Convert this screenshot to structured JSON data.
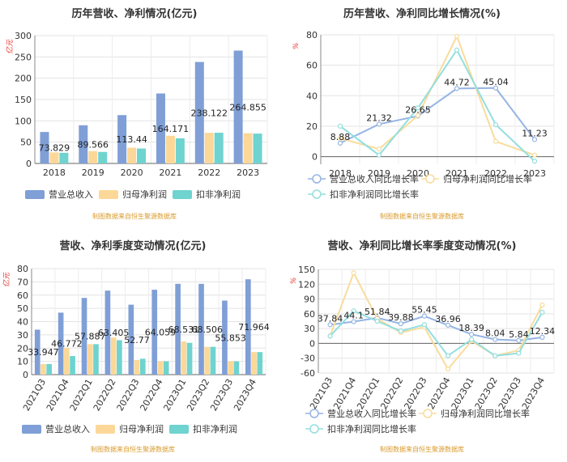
{
  "colors": {
    "revenue": "#7f9fd6",
    "netprofit": "#fcd898",
    "deducted": "#6fd3cf",
    "revenue_line": "#95b4e3",
    "netprofit_line": "#f8dc9c",
    "deducted_line": "#93dede",
    "axis_red": "#e8322c",
    "source": "#d99a2b"
  },
  "source_note": "制图数据来自恒生聚源数据库",
  "chart_data": [
    {
      "id": "annual_bar",
      "type": "bar",
      "title": "历年营收、净利情况(亿元)",
      "ylabel": "亿元",
      "ylim": [
        0,
        300
      ],
      "yticks": [
        0,
        50,
        100,
        150,
        200,
        250,
        300
      ],
      "categories": [
        "2018",
        "2019",
        "2020",
        "2021",
        "2022",
        "2023"
      ],
      "series": [
        {
          "name": "营业总收入",
          "values": [
            73.829,
            89.566,
            113.44,
            164.171,
            238.122,
            264.855
          ]
        },
        {
          "name": "归母净利润",
          "values": [
            26,
            29,
            37,
            65,
            72,
            71
          ]
        },
        {
          "name": "扣非净利润",
          "values": [
            25,
            27,
            35,
            59,
            72,
            70
          ]
        }
      ],
      "labels": [
        "73.829",
        "89.566",
        "113.44",
        "164.171",
        "238.122",
        "264.855"
      ]
    },
    {
      "id": "annual_line",
      "type": "line",
      "title": "历年营收、净利同比增长情况(%)",
      "ylabel": "%",
      "ylim": [
        -5,
        80
      ],
      "yticks": [
        0,
        20,
        40,
        60,
        80
      ],
      "categories": [
        "2018",
        "2019",
        "2020",
        "2021",
        "2022",
        "2023"
      ],
      "series": [
        {
          "name": "营业总收入同比增长率",
          "values": [
            8.88,
            21.32,
            26.65,
            44.72,
            45.04,
            11.23
          ]
        },
        {
          "name": "归母净利润同比增长率",
          "values": [
            12,
            5,
            27,
            79,
            10,
            1
          ]
        },
        {
          "name": "扣非净利润同比增长率",
          "values": [
            20,
            1,
            32,
            70,
            21,
            -3
          ]
        }
      ],
      "labels": [
        "8.88",
        "21.32",
        "26.65",
        "44.72",
        "45.04",
        "11.23"
      ]
    },
    {
      "id": "quarter_bar",
      "type": "bar",
      "title": "营收、净利季度变动情况(亿元)",
      "ylabel": "亿元",
      "ylim": [
        0,
        80
      ],
      "yticks": [
        0,
        10,
        20,
        30,
        40,
        50,
        60,
        70,
        80
      ],
      "categories": [
        "2021Q3",
        "2021Q4",
        "2022Q1",
        "2022Q2",
        "2022Q3",
        "2022Q4",
        "2023Q1",
        "2023Q2",
        "2023Q3",
        "2023Q4"
      ],
      "series": [
        {
          "name": "营业总收入",
          "values": [
            33.947,
            46.772,
            57.887,
            63.405,
            52.77,
            64.059,
            68.531,
            68.506,
            55.853,
            71.964
          ]
        },
        {
          "name": "归母净利润",
          "values": [
            8,
            20,
            23,
            28,
            11,
            10,
            25,
            21,
            10,
            17
          ]
        },
        {
          "name": "扣非净利润",
          "values": [
            8,
            14,
            23,
            26,
            12,
            10,
            24,
            21,
            10,
            17
          ]
        }
      ],
      "labels": [
        "33.947",
        "46.772",
        "57.887",
        "63.405",
        "52.77",
        "64.059",
        "68.531",
        "68.506",
        "55.853",
        "71.964"
      ]
    },
    {
      "id": "quarter_line",
      "type": "line",
      "title": "营收、净利同比增长率季度变动情况(%)",
      "ylabel": "%",
      "ylim": [
        -60,
        150
      ],
      "yticks": [
        -60,
        -30,
        0,
        30,
        60,
        90,
        120,
        150
      ],
      "categories": [
        "2021Q3",
        "2021Q4",
        "2022Q1",
        "2022Q2",
        "2022Q3",
        "2022Q4",
        "2023Q1",
        "2023Q2",
        "2023Q3",
        "2023Q4"
      ],
      "series": [
        {
          "name": "营业总收入同比增长率",
          "values": [
            37.84,
            44.1,
            51.84,
            39.88,
            55.45,
            36.96,
            18.39,
            8.04,
            5.84,
            12.34
          ]
        },
        {
          "name": "归母净利润同比增长率",
          "values": [
            15,
            143,
            50,
            22,
            33,
            -52,
            5,
            -25,
            -14,
            78
          ]
        },
        {
          "name": "扣非净利润同比增长率",
          "values": [
            15,
            66,
            45,
            25,
            38,
            -25,
            8,
            -25,
            -20,
            63
          ]
        }
      ],
      "labels": [
        "37.84",
        "44.1",
        "51.84",
        "39.88",
        "55.45",
        "36.96",
        "18.39",
        "8.04",
        "5.84",
        "12.34"
      ]
    }
  ]
}
